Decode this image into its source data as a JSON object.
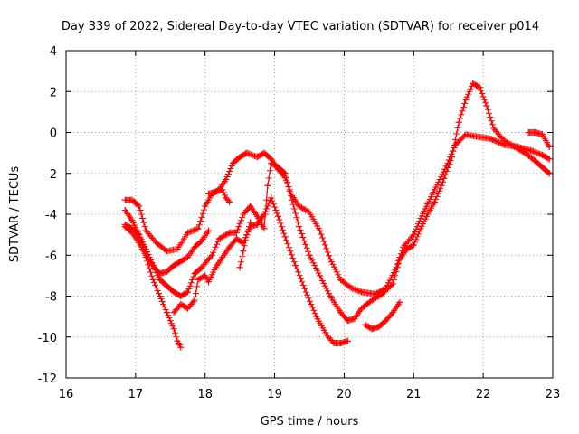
{
  "chart_data": {
    "type": "scatter",
    "title": "Day 339 of 2022, Sidereal Day-to-day VTEC variation (SDTVAR) for receiver p014",
    "xlabel": "GPS time / hours",
    "ylabel": "SDTVAR / TECUs",
    "xlim": [
      16,
      23
    ],
    "ylim": [
      -12,
      4
    ],
    "xticks": [
      16,
      17,
      18,
      19,
      20,
      21,
      22,
      23
    ],
    "yticks": [
      -12,
      -10,
      -8,
      -6,
      -4,
      -2,
      0,
      2,
      4
    ],
    "grid": true,
    "marker": "+",
    "color": "#ff0000",
    "series": [
      {
        "name": "trace-1",
        "points": [
          [
            16.85,
            -3.3
          ],
          [
            16.95,
            -3.3
          ],
          [
            17.05,
            -3.6
          ],
          [
            17.15,
            -4.8
          ],
          [
            17.3,
            -5.4
          ],
          [
            17.45,
            -5.8
          ],
          [
            17.6,
            -5.7
          ],
          [
            17.75,
            -4.9
          ],
          [
            17.9,
            -4.7
          ],
          [
            18.0,
            -3.6
          ],
          [
            18.1,
            -3.0
          ],
          [
            18.2,
            -2.8
          ],
          [
            18.3,
            -2.3
          ],
          [
            18.4,
            -1.5
          ],
          [
            18.5,
            -1.2
          ],
          [
            18.6,
            -1.0
          ],
          [
            18.75,
            -1.2
          ],
          [
            18.85,
            -1.0
          ],
          [
            18.95,
            -1.3
          ],
          [
            19.05,
            -1.8
          ],
          [
            19.15,
            -2.2
          ],
          [
            19.25,
            -3.1
          ],
          [
            19.35,
            -3.6
          ],
          [
            19.5,
            -3.9
          ],
          [
            19.65,
            -4.8
          ],
          [
            19.8,
            -6.2
          ],
          [
            19.95,
            -7.2
          ],
          [
            20.1,
            -7.6
          ],
          [
            20.25,
            -7.8
          ],
          [
            20.45,
            -7.9
          ],
          [
            20.6,
            -7.6
          ],
          [
            20.75,
            -6.6
          ],
          [
            20.85,
            -5.6
          ],
          [
            21.0,
            -5.0
          ],
          [
            21.1,
            -4.2
          ],
          [
            21.2,
            -3.5
          ],
          [
            21.3,
            -2.8
          ],
          [
            21.45,
            -1.8
          ],
          [
            21.6,
            -0.6
          ],
          [
            21.75,
            -0.1
          ],
          [
            21.9,
            -0.2
          ],
          [
            22.1,
            -0.3
          ],
          [
            22.3,
            -0.6
          ],
          [
            22.5,
            -0.7
          ],
          [
            22.7,
            -0.9
          ],
          [
            22.85,
            -1.1
          ],
          [
            22.95,
            -1.3
          ]
        ]
      },
      {
        "name": "trace-2",
        "points": [
          [
            16.85,
            -4.5
          ],
          [
            16.95,
            -4.7
          ],
          [
            17.05,
            -5.0
          ],
          [
            17.15,
            -5.7
          ],
          [
            17.25,
            -6.5
          ],
          [
            17.35,
            -7.2
          ],
          [
            17.45,
            -7.5
          ],
          [
            17.55,
            -7.8
          ],
          [
            17.65,
            -8.0
          ],
          [
            17.75,
            -7.8
          ],
          [
            17.85,
            -6.9
          ],
          [
            17.95,
            -6.6
          ],
          [
            18.1,
            -6.0
          ],
          [
            18.2,
            -5.2
          ],
          [
            18.35,
            -4.9
          ],
          [
            18.45,
            -4.9
          ],
          [
            18.55,
            -4.0
          ],
          [
            18.65,
            -3.6
          ],
          [
            18.75,
            -4.1
          ],
          [
            18.85,
            -4.7
          ],
          [
            18.9,
            -2.6
          ],
          [
            18.95,
            -1.5
          ],
          [
            19.05,
            -1.7
          ],
          [
            19.15,
            -2.0
          ],
          [
            19.25,
            -3.3
          ],
          [
            19.35,
            -4.6
          ],
          [
            19.5,
            -6.0
          ],
          [
            19.65,
            -7.0
          ],
          [
            19.8,
            -8.0
          ],
          [
            19.95,
            -8.8
          ],
          [
            20.05,
            -9.2
          ],
          [
            20.15,
            -9.1
          ],
          [
            20.25,
            -8.6
          ],
          [
            20.4,
            -8.2
          ],
          [
            20.55,
            -7.9
          ],
          [
            20.7,
            -7.4
          ],
          [
            20.8,
            -6.2
          ],
          [
            20.9,
            -5.7
          ],
          [
            21.0,
            -5.5
          ],
          [
            21.1,
            -4.7
          ],
          [
            21.2,
            -4.0
          ],
          [
            21.3,
            -3.4
          ],
          [
            21.4,
            -2.6
          ],
          [
            21.55,
            -1.2
          ],
          [
            21.65,
            0.5
          ],
          [
            21.75,
            1.6
          ],
          [
            21.85,
            2.4
          ],
          [
            21.95,
            2.2
          ],
          [
            22.05,
            1.3
          ],
          [
            22.15,
            0.2
          ],
          [
            22.3,
            -0.4
          ],
          [
            22.45,
            -0.7
          ],
          [
            22.6,
            -1.0
          ],
          [
            22.75,
            -1.4
          ],
          [
            22.85,
            -1.7
          ],
          [
            22.95,
            -2.0
          ]
        ]
      },
      {
        "name": "trace-3",
        "points": [
          [
            16.85,
            -3.8
          ],
          [
            16.95,
            -4.3
          ],
          [
            17.05,
            -5.0
          ],
          [
            17.15,
            -6.1
          ],
          [
            17.25,
            -7.2
          ],
          [
            17.35,
            -8.0
          ],
          [
            17.45,
            -8.8
          ],
          [
            17.55,
            -9.6
          ],
          [
            17.6,
            -10.2
          ],
          [
            17.65,
            -10.5
          ]
        ]
      },
      {
        "name": "trace-4",
        "points": [
          [
            16.85,
            -4.6
          ],
          [
            16.95,
            -4.9
          ],
          [
            17.05,
            -5.4
          ],
          [
            17.15,
            -6.0
          ],
          [
            17.25,
            -6.5
          ],
          [
            17.35,
            -6.9
          ],
          [
            17.45,
            -6.8
          ],
          [
            17.55,
            -6.5
          ],
          [
            17.65,
            -6.3
          ],
          [
            17.75,
            -6.1
          ],
          [
            17.85,
            -5.6
          ],
          [
            17.95,
            -5.3
          ],
          [
            18.05,
            -4.8
          ]
        ]
      },
      {
        "name": "trace-5",
        "points": [
          [
            17.55,
            -8.8
          ],
          [
            17.65,
            -8.4
          ],
          [
            17.75,
            -8.6
          ],
          [
            17.85,
            -8.2
          ],
          [
            17.9,
            -7.2
          ],
          [
            18.0,
            -7.0
          ],
          [
            18.05,
            -7.3
          ],
          [
            18.15,
            -6.6
          ],
          [
            18.25,
            -6.1
          ],
          [
            18.35,
            -5.6
          ],
          [
            18.45,
            -5.2
          ],
          [
            18.55,
            -5.4
          ],
          [
            18.65,
            -4.6
          ],
          [
            18.75,
            -4.5
          ],
          [
            18.85,
            -4.0
          ],
          [
            18.95,
            -3.2
          ],
          [
            19.05,
            -4.1
          ],
          [
            19.15,
            -5.1
          ],
          [
            19.3,
            -6.5
          ],
          [
            19.45,
            -7.8
          ],
          [
            19.6,
            -9.0
          ],
          [
            19.75,
            -9.9
          ],
          [
            19.85,
            -10.3
          ],
          [
            19.95,
            -10.3
          ],
          [
            20.05,
            -10.2
          ]
        ]
      },
      {
        "name": "trace-6",
        "points": [
          [
            18.05,
            -3.0
          ],
          [
            18.15,
            -2.9
          ],
          [
            18.25,
            -2.8
          ],
          [
            18.3,
            -3.2
          ],
          [
            18.35,
            -3.4
          ]
        ]
      },
      {
        "name": "trace-7",
        "points": [
          [
            20.3,
            -9.4
          ],
          [
            20.4,
            -9.6
          ],
          [
            20.5,
            -9.5
          ],
          [
            20.6,
            -9.2
          ],
          [
            20.7,
            -8.8
          ],
          [
            20.8,
            -8.3
          ]
        ]
      },
      {
        "name": "trace-8",
        "points": [
          [
            18.5,
            -6.6
          ],
          [
            18.55,
            -5.8
          ],
          [
            18.6,
            -5.0
          ],
          [
            18.65,
            -4.4
          ]
        ]
      },
      {
        "name": "trace-9",
        "points": [
          [
            22.65,
            0.0
          ],
          [
            22.75,
            0.0
          ],
          [
            22.85,
            -0.1
          ],
          [
            22.95,
            -0.7
          ]
        ]
      }
    ]
  }
}
